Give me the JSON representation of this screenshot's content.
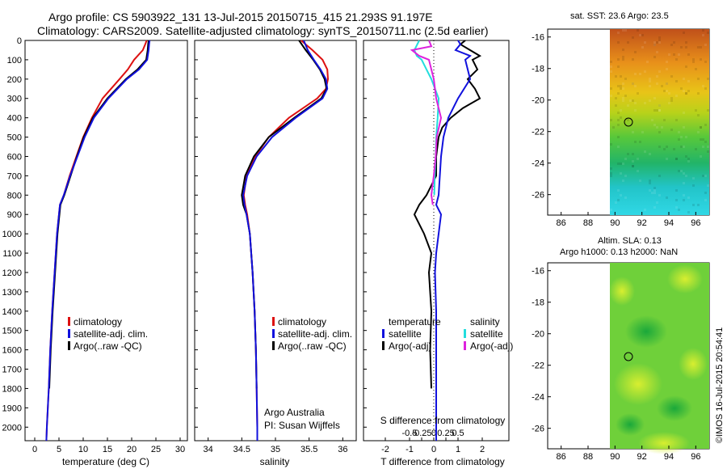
{
  "title_line1": "Argo profile: CS 5903922_131 13-Jul-2015 20150715_415 21.293S 91.197E",
  "title_line2": "Climatology: CARS2009. Satellite-adjusted climatology: synTS_20150711.nc (2.5d earlier)",
  "credit": "©IMOS 16-Jul-2015 20:54:41",
  "colors": {
    "climatology": "#dd1111",
    "satellite": "#1111dd",
    "argo": "#000000",
    "sal_satellite": "#22dddd",
    "sal_argo": "#dd22dd"
  },
  "depth_ticks": [
    "0",
    "100",
    "200",
    "300",
    "400",
    "500",
    "600",
    "700",
    "800",
    "900",
    "1000",
    "1100",
    "1200",
    "1300",
    "1400",
    "1500",
    "1600",
    "1700",
    "1800",
    "1900",
    "2000"
  ],
  "chart_data": [
    {
      "type": "line",
      "name": "temperature-profile",
      "xlabel": "temperature (deg C)",
      "ylabel": "depth",
      "xlim": [
        -2,
        31.5
      ],
      "ylim": [
        2070,
        0
      ],
      "xticks": [
        "0",
        "5",
        "10",
        "15",
        "20",
        "25",
        "30"
      ],
      "legend": [
        "climatology",
        "satellite-adj. clim.",
        "Argo(..raw -QC)"
      ],
      "series": [
        {
          "name": "climatology",
          "depth": [
            0,
            20,
            50,
            100,
            150,
            200,
            300,
            400,
            500,
            600,
            700,
            800,
            850,
            900,
            1000,
            1200,
            1400,
            1600,
            1800,
            2000,
            2070
          ],
          "values": [
            23.1,
            22.8,
            22.3,
            20.5,
            19.2,
            17.5,
            14.0,
            11.8,
            10.0,
            8.6,
            7.2,
            6.0,
            5.2,
            5.0,
            4.6,
            4.1,
            3.6,
            3.2,
            2.9,
            2.5,
            2.4
          ]
        },
        {
          "name": "satellite-adj. clim.",
          "depth": [
            0,
            20,
            50,
            100,
            150,
            200,
            300,
            400,
            500,
            600,
            700,
            800,
            850,
            900,
            1000,
            1200,
            1400,
            1600,
            1800,
            2000,
            2070
          ],
          "values": [
            23.7,
            23.6,
            23.5,
            23.2,
            21.5,
            19.0,
            15.2,
            12.2,
            10.3,
            8.8,
            7.3,
            6.0,
            5.2,
            5.0,
            4.6,
            4.1,
            3.6,
            3.2,
            2.9,
            2.5,
            2.4
          ]
        },
        {
          "name": "Argo(..raw -QC)",
          "depth": [
            0,
            20,
            50,
            100,
            150,
            200,
            300,
            400,
            500,
            600,
            700,
            800,
            850,
            900,
            1000,
            1200,
            1400,
            1600,
            1800
          ],
          "values": [
            23.5,
            23.4,
            23.3,
            23.0,
            21.2,
            18.8,
            15.0,
            12.0,
            10.1,
            8.7,
            7.4,
            6.1,
            5.3,
            5.1,
            4.7,
            4.2,
            3.7,
            3.3,
            3.0
          ]
        }
      ]
    },
    {
      "type": "line",
      "name": "salinity-profile",
      "xlabel": "salinity",
      "ylabel": "depth",
      "xlim": [
        33.8,
        36.2
      ],
      "ylim": [
        2070,
        0
      ],
      "xticks": [
        "34",
        "34.5",
        "35",
        "35.5",
        "36"
      ],
      "legend": [
        "climatology",
        "satellite-adj. clim.",
        "Argo(..raw -QC)"
      ],
      "annotation": [
        "Argo Australia",
        "PI: Susan Wijffels"
      ],
      "series": [
        {
          "name": "climatology",
          "depth": [
            0,
            50,
            100,
            150,
            200,
            250,
            300,
            400,
            500,
            600,
            700,
            800,
            850,
            900,
            1000,
            1200,
            1400,
            1600,
            1800,
            2000,
            2070
          ],
          "values": [
            35.38,
            35.55,
            35.7,
            35.77,
            35.78,
            35.75,
            35.62,
            35.2,
            34.9,
            34.7,
            34.57,
            34.53,
            34.55,
            34.58,
            34.62,
            34.66,
            34.69,
            34.71,
            34.72,
            34.73,
            34.73
          ]
        },
        {
          "name": "satellite-adj. clim.",
          "depth": [
            0,
            50,
            100,
            150,
            200,
            250,
            300,
            400,
            500,
            600,
            700,
            800,
            850,
            900,
            1000,
            1200,
            1400,
            1600,
            1800,
            2000,
            2070
          ],
          "values": [
            35.42,
            35.48,
            35.57,
            35.67,
            35.75,
            35.77,
            35.7,
            35.3,
            34.95,
            34.72,
            34.58,
            34.52,
            34.54,
            34.57,
            34.62,
            34.66,
            34.69,
            34.71,
            34.72,
            34.73,
            34.73
          ]
        },
        {
          "name": "Argo(..raw -QC)",
          "depth": [
            0,
            50,
            100,
            150,
            200,
            250,
            300,
            400,
            500,
            600,
            700,
            800,
            850,
            900,
            1000,
            1200,
            1400,
            1600,
            1800
          ],
          "values": [
            35.35,
            35.45,
            35.56,
            35.66,
            35.73,
            35.76,
            35.68,
            35.28,
            34.9,
            34.68,
            34.55,
            34.5,
            34.52,
            34.57,
            34.62,
            34.66,
            34.69,
            34.71,
            34.72
          ]
        }
      ]
    },
    {
      "type": "line",
      "name": "difference-from-climatology",
      "xlabel_top": "S difference from climatology",
      "xlabel": "T difference from climatology",
      "xlim": [
        -2.9,
        3.1
      ],
      "ylim": [
        2070,
        0
      ],
      "xticks_T": [
        "-2",
        "-1",
        "0",
        "1",
        "2"
      ],
      "xticks_S": [
        "-0.5",
        "-0.25",
        "0",
        "0.25",
        "0.5"
      ],
      "legend_temperature": [
        "temperature",
        "satellite",
        "Argo(-adj)"
      ],
      "legend_salinity": [
        "salinity",
        "satellite",
        "Argo(-adj)"
      ],
      "series": [
        {
          "name": "T satellite",
          "depth": [
            0,
            20,
            50,
            80,
            100,
            150,
            200,
            300,
            400,
            500,
            600,
            700,
            800,
            850,
            900,
            1000,
            1100,
            1200,
            1400,
            1600,
            1800,
            2000,
            2070
          ],
          "values": [
            1.0,
            1.1,
            0.9,
            1.5,
            1.3,
            1.4,
            1.5,
            1.0,
            0.6,
            0.4,
            0.3,
            0.25,
            0.2,
            0.1,
            0.3,
            0.2,
            0.1,
            0.05,
            0.1,
            0.1,
            0.1,
            0.1,
            0.1
          ]
        },
        {
          "name": "T Argo(-adj)",
          "depth": [
            0,
            20,
            50,
            80,
            100,
            150,
            200,
            250,
            300,
            350,
            400,
            450,
            500,
            600,
            700,
            800,
            850,
            900,
            1000,
            1100,
            1200,
            1400,
            1600,
            1800
          ],
          "values": [
            1.3,
            1.1,
            1.5,
            1.9,
            1.6,
            1.8,
            1.4,
            1.7,
            1.9,
            1.2,
            0.7,
            0.35,
            0.2,
            0.1,
            0.1,
            -0.3,
            -0.6,
            -0.8,
            -0.4,
            -0.1,
            -0.2,
            -0.1,
            -0.15,
            -0.1
          ]
        },
        {
          "name": "S satellite",
          "depth": [
            0,
            50,
            80,
            100,
            150,
            200,
            300,
            400,
            500,
            600,
            700,
            800
          ],
          "values": [
            -0.3,
            -0.4,
            -0.35,
            -0.25,
            -0.15,
            -0.05,
            0.1,
            0.08,
            0.05,
            0.04,
            0.02,
            0.01
          ]
        },
        {
          "name": "S Argo(-adj)",
          "depth": [
            0,
            30,
            50,
            80,
            100,
            150,
            200,
            300,
            400,
            500,
            600,
            700,
            800,
            850
          ],
          "values": [
            -0.1,
            -0.05,
            -0.45,
            -0.3,
            -0.1,
            -0.05,
            0.0,
            0.05,
            0.15,
            0.06,
            0.04,
            0.0,
            -0.05,
            -0.02
          ]
        }
      ]
    }
  ],
  "map_sst": {
    "title": "sat. SST: 23.6 Argo: 23.5",
    "xticks": [
      "86",
      "88",
      "90",
      "92",
      "94",
      "96"
    ],
    "yticks": [
      "-16",
      "-18",
      "-20",
      "-22",
      "-24",
      "-26"
    ],
    "marker": {
      "lon": 91.2,
      "lat": -21.3
    }
  },
  "map_sla": {
    "title1": "Altim. SLA: 0.13",
    "title2": "Argo h1000: 0.13 h2000: NaN",
    "xticks": [
      "86",
      "88",
      "90",
      "92",
      "94",
      "96"
    ],
    "yticks": [
      "-16",
      "-18",
      "-20",
      "-22",
      "-24",
      "-26"
    ],
    "marker": {
      "lon": 91.2,
      "lat": -21.3
    }
  }
}
